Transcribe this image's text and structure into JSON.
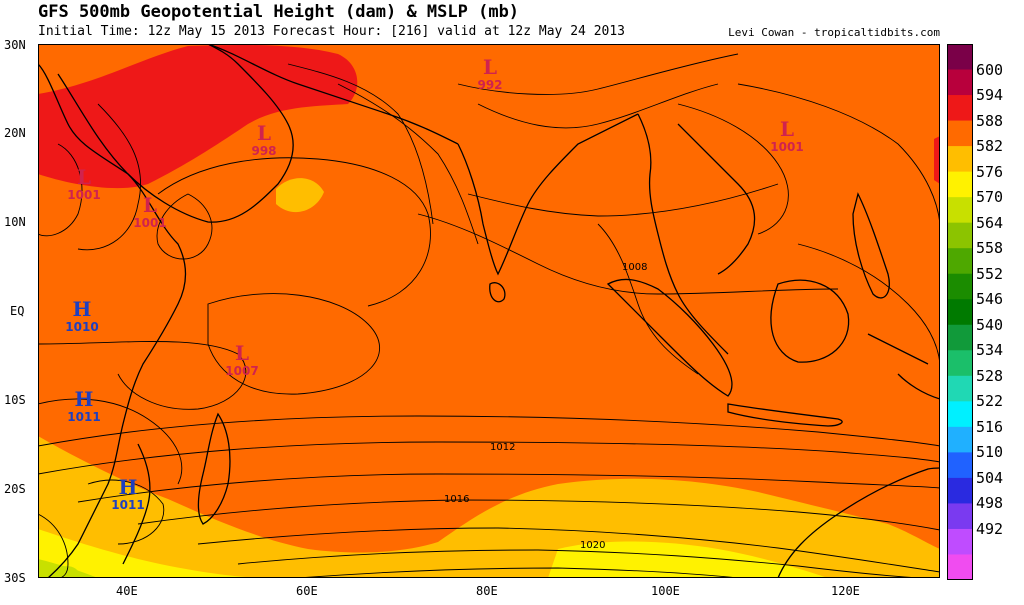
{
  "header": {
    "title": "GFS 500mb Geopotential Height (dam) & MSLP (mb)",
    "subtitle": "Initial Time: 12z May 15 2013 Forecast Hour: [216] valid at 12z May 24 2013",
    "credit": "Levi Cowan - tropicaltidbits.com"
  },
  "axes": {
    "lat_labels": [
      "30N",
      "20N",
      "10N",
      "EQ",
      "10S",
      "20S",
      "30S"
    ],
    "lon_labels": [
      "40E",
      "60E",
      "80E",
      "100E",
      "120E"
    ]
  },
  "pressure_centers": [
    {
      "type": "L",
      "value": "992",
      "color": "#d0234e"
    },
    {
      "type": "L",
      "value": "998",
      "color": "#d0234e"
    },
    {
      "type": "L",
      "value": "1001",
      "color": "#d0234e"
    },
    {
      "type": "L",
      "value": "1001",
      "color": "#d0234e"
    },
    {
      "type": "L",
      "value": "1001",
      "color": "#d0234e"
    },
    {
      "type": "L",
      "value": "1007",
      "color": "#d0234e"
    },
    {
      "type": "H",
      "value": "1010",
      "color": "#1f3fbf"
    },
    {
      "type": "H",
      "value": "1011",
      "color": "#1f3fbf"
    },
    {
      "type": "H",
      "value": "1011",
      "color": "#1f3fbf"
    }
  ],
  "isobar_labels": [
    "1008",
    "1012",
    "1016",
    "1020"
  ],
  "colorbar": {
    "levels": [
      "600",
      "594",
      "588",
      "582",
      "576",
      "570",
      "564",
      "558",
      "552",
      "546",
      "540",
      "534",
      "528",
      "522",
      "516",
      "510",
      "504",
      "498",
      "492"
    ],
    "colors": [
      "#7a0048",
      "#b8003c",
      "#ee1818",
      "#ff6a00",
      "#ffbe00",
      "#fff200",
      "#c8e000",
      "#8cc400",
      "#4ea800",
      "#1b8c00",
      "#007a00",
      "#119a3a",
      "#1bbf6a",
      "#20d8b4",
      "#00f0ff",
      "#20b0ff",
      "#2062ff",
      "#2a2ae0",
      "#7a3af0",
      "#bf4cff",
      "#f04cf0"
    ]
  }
}
